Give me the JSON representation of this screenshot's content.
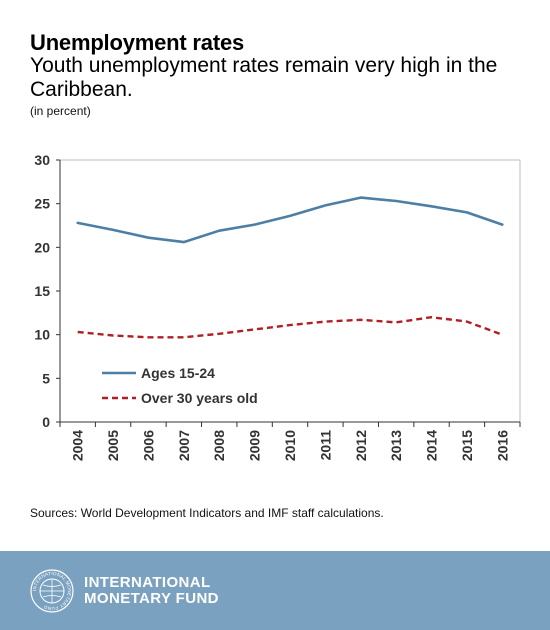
{
  "header": {
    "title": "Unemployment rates",
    "subtitle": "Youth unemployment rates remain very high in the Caribbean.",
    "unit": "(in percent)"
  },
  "source": "Sources: World Development Indicators and IMF staff calculations.",
  "footer": {
    "org_line1": "INTERNATIONAL",
    "org_line2": "MONETARY FUND",
    "seal_text": "INTERNATIONAL MONETARY FUND",
    "background_color": "#7ba1c0"
  },
  "chart_data": {
    "type": "line",
    "categories": [
      "2004",
      "2005",
      "2006",
      "2007",
      "2008",
      "2009",
      "2010",
      "2011",
      "2012",
      "2013",
      "2014",
      "2015",
      "2016"
    ],
    "series": [
      {
        "name": "Ages 15-24",
        "color": "#4d7fa6",
        "style": "solid",
        "values": [
          22.8,
          22.0,
          21.1,
          20.6,
          21.9,
          22.6,
          23.6,
          24.8,
          25.7,
          25.3,
          24.7,
          24.0,
          22.6
        ]
      },
      {
        "name": "Over 30 years old",
        "color": "#b01f24",
        "style": "dashed",
        "values": [
          10.3,
          9.9,
          9.7,
          9.7,
          10.1,
          10.6,
          11.1,
          11.5,
          11.7,
          11.4,
          12.0,
          11.5,
          10.0
        ]
      }
    ],
    "title": "Unemployment rates",
    "ylim": [
      0,
      30
    ],
    "yticks": [
      0,
      5,
      10,
      15,
      20,
      25,
      30
    ],
    "grid": false,
    "legend": "bottom-left"
  }
}
